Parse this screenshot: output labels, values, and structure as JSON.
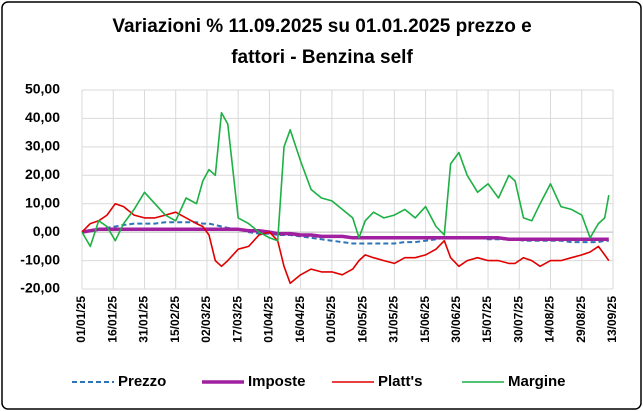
{
  "chart_data": {
    "type": "line",
    "title": [
      "Variazioni % 11.09.2025 su 01.01.2025 prezzo e",
      "fattori - Benzina self"
    ],
    "x": [
      "01/01/25",
      "05/01/25",
      "09/01/25",
      "13/01/25",
      "17/01/25",
      "21/01/25",
      "26/01/25",
      "31/01/25",
      "05/02/25",
      "10/02/25",
      "15/02/25",
      "20/02/25",
      "25/02/25",
      "28/02/25",
      "03/03/25",
      "06/03/25",
      "09/03/25",
      "12/03/25",
      "17/03/25",
      "22/03/25",
      "27/03/25",
      "01/04/25",
      "05/04/25",
      "08/04/25",
      "11/04/25",
      "16/04/25",
      "21/04/25",
      "26/04/25",
      "01/05/25",
      "06/05/25",
      "11/05/25",
      "14/05/25",
      "17/05/25",
      "21/05/25",
      "26/05/25",
      "31/05/25",
      "05/06/25",
      "10/06/25",
      "15/06/25",
      "20/06/25",
      "24/06/25",
      "27/06/25",
      "01/07/25",
      "05/07/25",
      "10/07/25",
      "15/07/25",
      "20/07/25",
      "25/07/25",
      "28/07/25",
      "01/08/25",
      "05/08/25",
      "09/08/25",
      "14/08/25",
      "19/08/25",
      "24/08/25",
      "29/08/25",
      "02/09/25",
      "06/09/25",
      "09/09/25",
      "11/09/25"
    ],
    "series": [
      {
        "name": "Prezzo",
        "color": "#2e75b6",
        "dash": true,
        "width": 2,
        "values": [
          0,
          0.5,
          1,
          1.5,
          2,
          2.5,
          3,
          3,
          3,
          3.5,
          3.5,
          3.5,
          3.5,
          3,
          3,
          2.5,
          2,
          1.5,
          1,
          0,
          -0.5,
          -0.5,
          -1,
          -1,
          -1,
          -1.5,
          -2,
          -2.5,
          -3,
          -3.5,
          -4,
          -4,
          -4,
          -4,
          -4,
          -4,
          -3.5,
          -3.5,
          -3,
          -2.5,
          -2,
          -2,
          -2,
          -2,
          -2,
          -2.5,
          -2.5,
          -2.5,
          -2.5,
          -3,
          -3,
          -3,
          -3,
          -3,
          -3.5,
          -3.5,
          -3.5,
          -3.5,
          -3,
          -3
        ]
      },
      {
        "name": "Imposte",
        "color": "#a020a0",
        "dash": false,
        "width": 3.5,
        "values": [
          0,
          0.5,
          1,
          1,
          1,
          1,
          1,
          1,
          1,
          1,
          1,
          1,
          1,
          1,
          1,
          1,
          1,
          1,
          1,
          0.5,
          0.5,
          0,
          -0.5,
          -0.5,
          -0.5,
          -1,
          -1,
          -1.5,
          -1.5,
          -1.5,
          -2,
          -2,
          -2,
          -2,
          -2,
          -2,
          -2,
          -2,
          -2,
          -2,
          -2,
          -2,
          -2,
          -2,
          -2,
          -2,
          -2,
          -2.5,
          -2.5,
          -2.5,
          -2.5,
          -2.5,
          -2.5,
          -2.5,
          -2.5,
          -2.5,
          -2.5,
          -2.5,
          -2.5,
          -2.5
        ]
      },
      {
        "name": "Platt's",
        "color": "#e00000",
        "dash": false,
        "width": 1.6,
        "values": [
          0,
          3,
          4,
          6,
          10,
          9,
          6,
          5,
          5,
          6,
          7,
          5,
          3,
          2,
          -1,
          -10,
          -12,
          -10,
          -6,
          -5,
          -1,
          0,
          -3,
          -12,
          -18,
          -15,
          -13,
          -14,
          -14,
          -15,
          -13,
          -10,
          -8,
          -9,
          -10,
          -11,
          -9,
          -9,
          -8,
          -6,
          -3,
          -9,
          -12,
          -10,
          -9,
          -10,
          -10,
          -11,
          -11,
          -9,
          -10,
          -12,
          -10,
          -10,
          -9,
          -8,
          -7,
          -5,
          -8,
          -10
        ]
      },
      {
        "name": "Margine",
        "color": "#1db044",
        "dash": false,
        "width": 1.6,
        "values": [
          0,
          -5,
          4,
          2,
          -3,
          3,
          8,
          14,
          10,
          6,
          4,
          12,
          10,
          18,
          22,
          20,
          42,
          38,
          5,
          3,
          0,
          -2,
          -3,
          30,
          36,
          25,
          15,
          12,
          11,
          8,
          5,
          -2,
          4,
          7,
          5,
          6,
          8,
          5,
          9,
          2,
          -1,
          24,
          28,
          20,
          14,
          17,
          12,
          20,
          18,
          5,
          4,
          10,
          17,
          9,
          8,
          6,
          -2,
          3,
          5,
          13
        ]
      }
    ],
    "xlim": [
      "01/01/25",
      "13/09/25"
    ],
    "xticks": [
      "01/01/25",
      "16/01/25",
      "31/01/25",
      "15/02/25",
      "02/03/25",
      "17/03/25",
      "01/04/25",
      "16/04/25",
      "01/05/25",
      "16/05/25",
      "31/05/25",
      "15/06/25",
      "30/06/25",
      "15/07/25",
      "30/07/25",
      "14/08/25",
      "29/08/25",
      "13/09/25"
    ],
    "ylim": [
      -20,
      50
    ],
    "yticks": [
      {
        "value": -20,
        "label": "-20,00"
      },
      {
        "value": -10,
        "label": "-10,00"
      },
      {
        "value": 0,
        "label": "0,00"
      },
      {
        "value": 10,
        "label": "10,00"
      },
      {
        "value": 20,
        "label": "20,00"
      },
      {
        "value": 30,
        "label": "30,00"
      },
      {
        "value": 40,
        "label": "40,00"
      },
      {
        "value": 50,
        "label": "50,00"
      }
    ],
    "negative_tick_color": "#c00000",
    "grid": true,
    "legend": "bottom"
  }
}
